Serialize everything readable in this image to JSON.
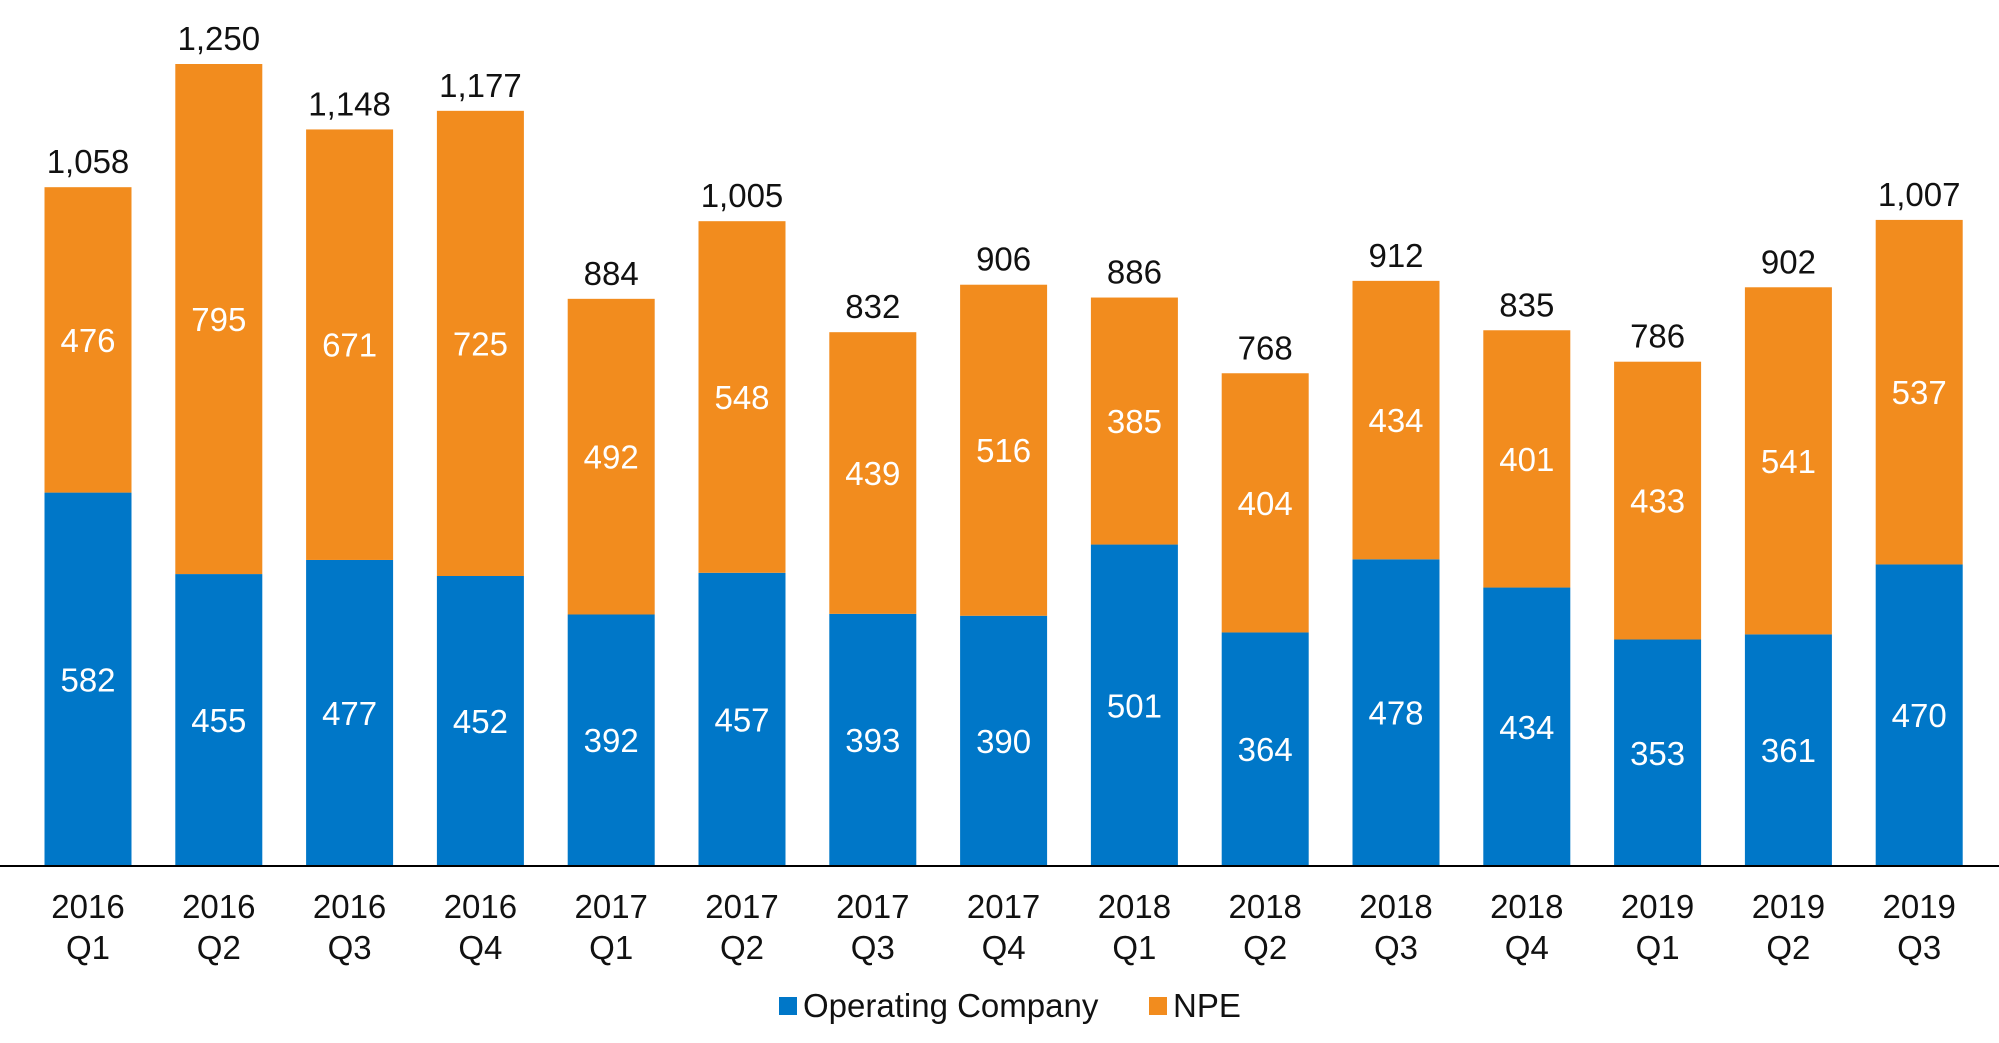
{
  "chart_data": {
    "type": "bar",
    "stacked": true,
    "categories": [
      [
        "2016",
        "Q1"
      ],
      [
        "2016",
        "Q2"
      ],
      [
        "2016",
        "Q3"
      ],
      [
        "2016",
        "Q4"
      ],
      [
        "2017",
        "Q1"
      ],
      [
        "2017",
        "Q2"
      ],
      [
        "2017",
        "Q3"
      ],
      [
        "2017",
        "Q4"
      ],
      [
        "2018",
        "Q1"
      ],
      [
        "2018",
        "Q2"
      ],
      [
        "2018",
        "Q3"
      ],
      [
        "2018",
        "Q4"
      ],
      [
        "2019",
        "Q1"
      ],
      [
        "2019",
        "Q2"
      ],
      [
        "2019",
        "Q3"
      ]
    ],
    "series": [
      {
        "name": "Operating Company",
        "color": "#0077C8",
        "values": [
          582,
          455,
          477,
          452,
          392,
          457,
          393,
          390,
          501,
          364,
          478,
          434,
          353,
          361,
          470
        ]
      },
      {
        "name": "NPE",
        "color": "#F28C1E",
        "values": [
          476,
          795,
          671,
          725,
          492,
          548,
          439,
          516,
          385,
          404,
          434,
          401,
          433,
          541,
          537
        ]
      }
    ],
    "totals": [
      "1,058",
      "1,250",
      "1,148",
      "1,177",
      "884",
      "1,005",
      "832",
      "906",
      "886",
      "768",
      "912",
      "835",
      "786",
      "902",
      "1,007"
    ],
    "title": "",
    "xlabel": "",
    "ylabel": "",
    "ylim": [
      0,
      1250
    ],
    "grid": false,
    "legend": "bottom-center"
  }
}
